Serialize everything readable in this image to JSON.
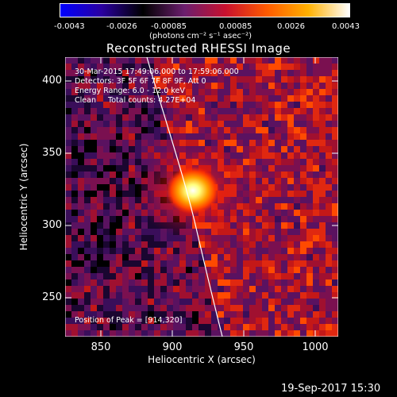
{
  "colorbar": {
    "ticks": [
      "-0.0043",
      "-0.0026",
      "-0.00085",
      "0.00085",
      "0.0026",
      "0.0043"
    ],
    "units": "(photons cm⁻² s⁻¹ asec⁻²)",
    "colors": [
      "#0000ff",
      "#2a00a0",
      "#000000",
      "#6b1e6e",
      "#c8102e",
      "#ff5a00",
      "#ffb000",
      "#ffffff"
    ]
  },
  "title": "Reconstructed RHESSI Image",
  "info": {
    "time": "30-Mar-2015 17:49:06.000 to 17:59:06.000",
    "detectors": "Detectors: 3F 5F 6F 7F 8F 9F, Att 0",
    "energy": "Energy Range: 6.0 - 12.0 keV",
    "clean": "Clean     Total counts: 4.27E+04",
    "peak": "Position of Peak = [914,320]"
  },
  "chart_data": {
    "type": "heatmap",
    "title": "Reconstructed RHESSI Image",
    "xlabel": "Heliocentric X (arcsec)",
    "ylabel": "Heliocentric Y (arcsec)",
    "xlim": [
      820,
      1012
    ],
    "ylim": [
      215,
      413
    ],
    "xticks": [
      "850",
      "900",
      "950",
      "1000"
    ],
    "yticks": [
      "400",
      "350",
      "300",
      "250"
    ],
    "peak": [
      914,
      320
    ],
    "colorbar_range": [
      -0.0043,
      0.0043
    ]
  },
  "stamp": "19-Sep-2017 15:30"
}
